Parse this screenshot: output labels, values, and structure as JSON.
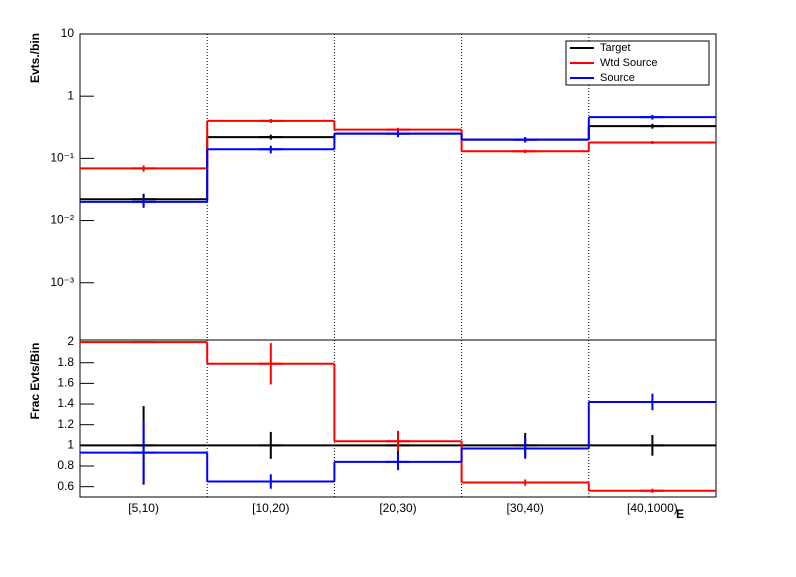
{
  "chart_data": [
    {
      "type": "step",
      "ylabel": "Evts./bin",
      "log": true,
      "ylim": [
        0.00012,
        10
      ],
      "yticks": [
        {
          "value": 10,
          "label": "10"
        },
        {
          "value": 1,
          "label": "1"
        },
        {
          "value": 0.1,
          "label": "10⁻¹"
        },
        {
          "value": 0.01,
          "label": "10⁻²"
        },
        {
          "value": 0.001,
          "label": "10⁻³"
        }
      ],
      "legend": "top-right",
      "series": [
        {
          "name": "Target",
          "color": "#000000",
          "values": [
            0.022,
            0.22,
            0.25,
            0.2,
            0.33
          ],
          "errors": [
            0.005,
            0.02,
            0.03,
            0.02,
            0.03
          ]
        },
        {
          "name": "Wtd Source",
          "color": "#ff0000",
          "values": [
            0.069,
            0.4,
            0.29,
            0.13,
            0.18
          ],
          "errors": [
            0.008,
            0.03,
            0.02,
            0.008,
            0.01
          ]
        },
        {
          "name": "Source",
          "color": "#0000ff",
          "values": [
            0.02,
            0.14,
            0.25,
            0.2,
            0.46
          ],
          "errors": [
            0.004,
            0.02,
            0.03,
            0.02,
            0.04
          ]
        }
      ]
    },
    {
      "type": "step",
      "ylabel": "Frac Evts/Bin",
      "xlabel": "E",
      "log": false,
      "categories": [
        "[5,10)",
        "[10,20)",
        "[20,30)",
        "[30,40)",
        "[40,1000)"
      ],
      "ylim": [
        0.5,
        2.02
      ],
      "yticks": [
        0.6,
        0.8,
        1,
        1.2,
        1.4,
        1.6,
        1.8,
        2
      ],
      "series": [
        {
          "name": "Target",
          "color": "#000000",
          "values": [
            1,
            1,
            1,
            1,
            1
          ],
          "errors": [
            0.38,
            0.13,
            0.1,
            0.12,
            0.1
          ]
        },
        {
          "name": "Wtd Source",
          "color": "#ff0000",
          "values": [
            2.0,
            1.79,
            1.04,
            0.64,
            0.56
          ],
          "errors": [
            0,
            0.2,
            0.1,
            0.03,
            0.02
          ]
        },
        {
          "name": "Source",
          "color": "#0000ff",
          "values": [
            0.93,
            0.65,
            0.84,
            0.97,
            1.42
          ],
          "errors": [
            0.3,
            0.07,
            0.08,
            0.1,
            0.08
          ]
        }
      ]
    }
  ]
}
